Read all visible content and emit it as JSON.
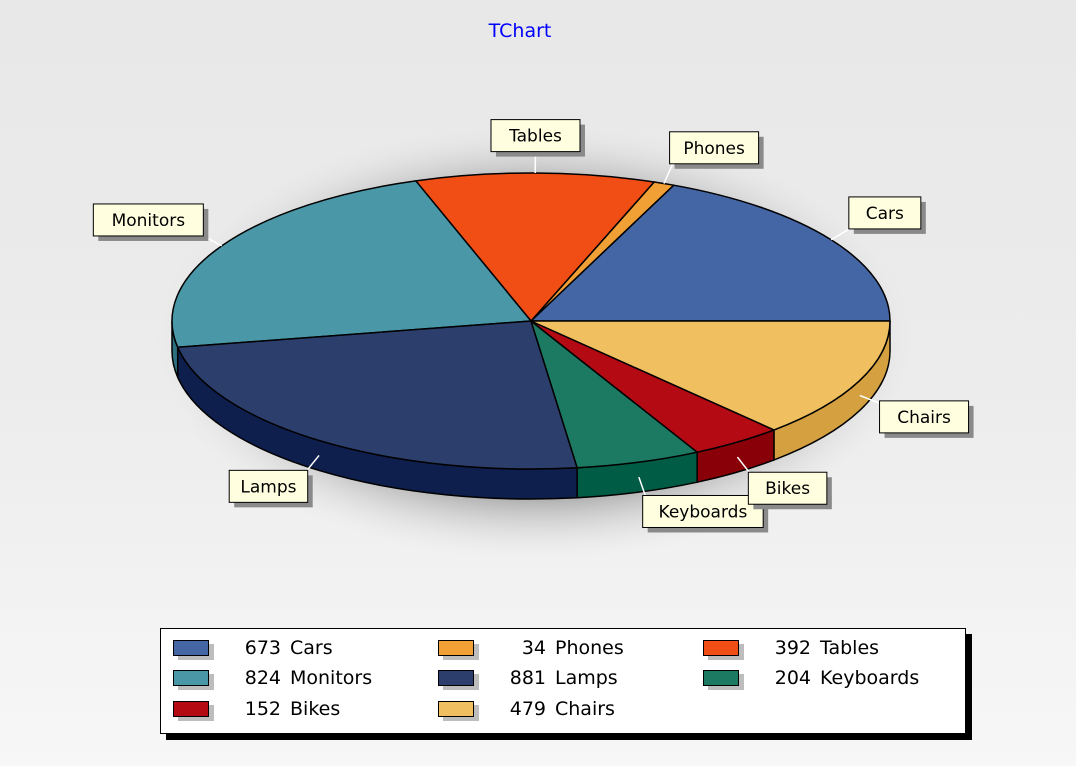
{
  "chart_data": {
    "type": "pie",
    "title": "TChart",
    "slices": [
      {
        "label": "Cars",
        "value": 673,
        "color": "#4466a4",
        "side": "#2f4a80"
      },
      {
        "label": "Phones",
        "value": 34,
        "color": "#f0a035",
        "side": "#c07a20"
      },
      {
        "label": "Tables",
        "value": 392,
        "color": "#f04e15",
        "side": "#b83a0e"
      },
      {
        "label": "Monitors",
        "value": 824,
        "color": "#4a97a8",
        "side": "#2c6f80"
      },
      {
        "label": "Lamps",
        "value": 881,
        "color": "#2c3e6c",
        "side": "#0f1f4d"
      },
      {
        "label": "Keyboards",
        "value": 204,
        "color": "#1d7a62",
        "side": "#005c44"
      },
      {
        "label": "Bikes",
        "value": 152,
        "color": "#b30a14",
        "side": "#8a0008"
      },
      {
        "label": "Chairs",
        "value": 479,
        "color": "#f0c060",
        "side": "#d4a040"
      }
    ],
    "legend_placement": "bottom",
    "view": "3d"
  },
  "legend": {
    "items": [
      {
        "value": "673",
        "label": "Cars",
        "color": "#4466a4"
      },
      {
        "value": "34",
        "label": "Phones",
        "color": "#f0a035"
      },
      {
        "value": "392",
        "label": "Tables",
        "color": "#f04e15"
      },
      {
        "value": "824",
        "label": "Monitors",
        "color": "#4a97a8"
      },
      {
        "value": "881",
        "label": "Lamps",
        "color": "#2c3e6c"
      },
      {
        "value": "204",
        "label": "Keyboards",
        "color": "#1d7a62"
      },
      {
        "value": "152",
        "label": "Bikes",
        "color": "#b30a14"
      },
      {
        "value": "479",
        "label": "Chairs",
        "color": "#f0c060"
      }
    ]
  }
}
